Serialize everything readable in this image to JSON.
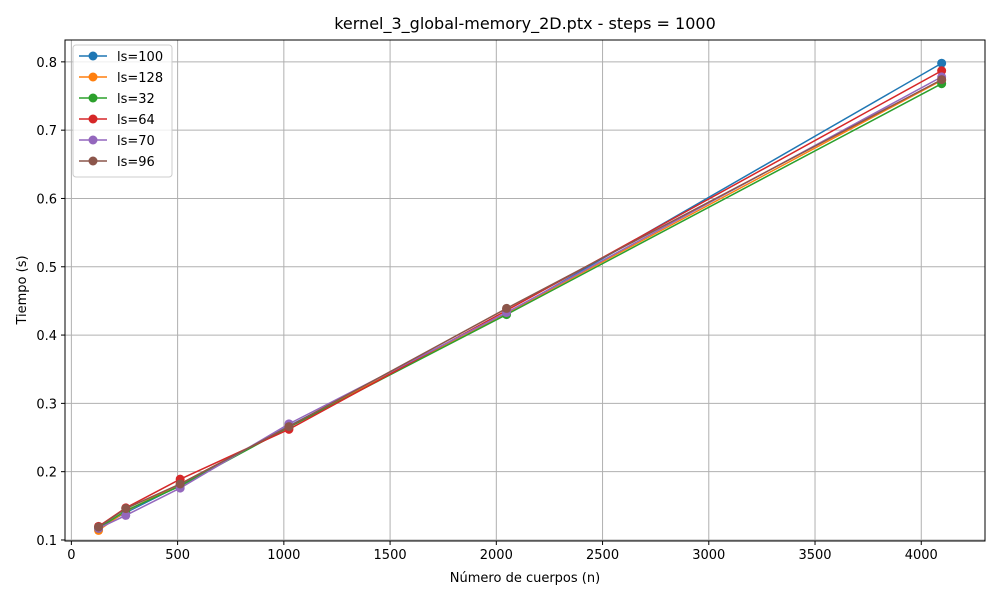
{
  "chart_data": {
    "type": "line",
    "title": "kernel_3_global-memory_2D.ptx - steps = 1000",
    "xlabel": "Número de cuerpos (n)",
    "ylabel": "Tiempo (s)",
    "xlim": [
      -30,
      4300
    ],
    "ylim": [
      0.0985,
      0.832
    ],
    "xticks": [
      0,
      500,
      1000,
      1500,
      2000,
      2500,
      3000,
      3500,
      4000
    ],
    "yticks": [
      0.1,
      0.2,
      0.3,
      0.4,
      0.5,
      0.6,
      0.7,
      0.8
    ],
    "grid": true,
    "legend_position": "top-left",
    "x": [
      128,
      256,
      512,
      1024,
      2048,
      4096
    ],
    "series": [
      {
        "name": "ls=100",
        "color": "#1f77b4",
        "values": [
          0.118,
          0.14,
          0.18,
          0.267,
          0.431,
          0.798
        ]
      },
      {
        "name": "ls=128",
        "color": "#ff7f0e",
        "values": [
          0.114,
          0.142,
          0.182,
          0.266,
          0.432,
          0.773
        ]
      },
      {
        "name": "ls=32",
        "color": "#2ca02c",
        "values": [
          0.117,
          0.143,
          0.179,
          0.265,
          0.43,
          0.768
        ]
      },
      {
        "name": "ls=64",
        "color": "#d62728",
        "values": [
          0.12,
          0.147,
          0.189,
          0.262,
          0.436,
          0.787
        ]
      },
      {
        "name": "ls=70",
        "color": "#9467bd",
        "values": [
          0.117,
          0.136,
          0.176,
          0.27,
          0.433,
          0.778
        ]
      },
      {
        "name": "ls=96",
        "color": "#8c564b",
        "values": [
          0.119,
          0.146,
          0.182,
          0.266,
          0.439,
          0.774
        ]
      }
    ]
  }
}
